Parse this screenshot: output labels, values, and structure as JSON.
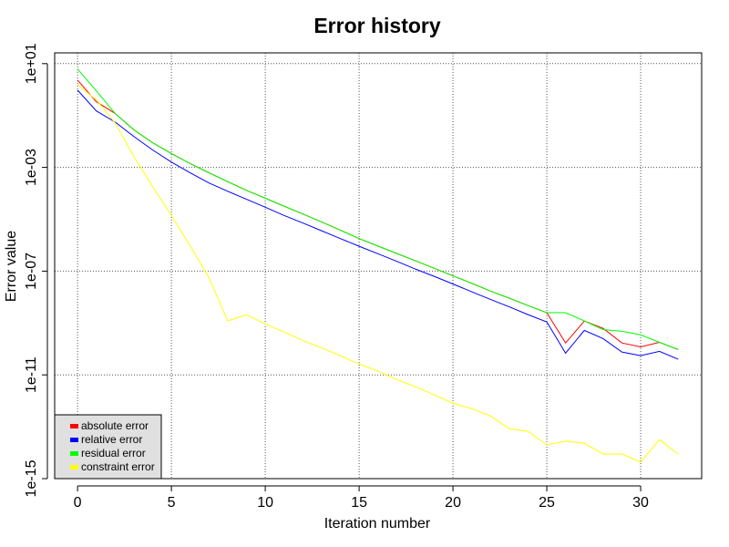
{
  "chart_data": {
    "type": "line",
    "title": "Error history",
    "x_label": "Iteration number",
    "y_label": "Error value",
    "log_y": true,
    "grid": true,
    "legend_position": "bottomleft",
    "x": [
      0,
      1,
      2,
      3,
      4,
      5,
      6,
      7,
      8,
      9,
      10,
      11,
      12,
      13,
      14,
      15,
      16,
      17,
      18,
      19,
      20,
      21,
      22,
      23,
      24,
      25,
      26,
      27,
      28,
      29,
      30,
      31,
      32
    ],
    "xlim": [
      -1.22,
      33.25
    ],
    "xticks": [
      0,
      5,
      10,
      15,
      20,
      25,
      30
    ],
    "ylim": [
      1e-15,
      26
    ],
    "yticks": [
      {
        "value": 10,
        "label": "1e+01"
      },
      {
        "value": 0.001,
        "label": "1e-03"
      },
      {
        "value": 1e-07,
        "label": "1e-07"
      },
      {
        "value": 1e-11,
        "label": "1e-11"
      },
      {
        "value": 1e-15,
        "label": "1e-15"
      }
    ],
    "series": [
      {
        "name": "absolute error",
        "color": "#ff0000",
        "values": [
          2.3,
          0.34,
          0.12,
          0.028,
          0.0089,
          0.0034,
          0.0014,
          0.00062,
          0.00028,
          0.00013,
          6.5e-05,
          3.2e-05,
          1.6e-05,
          7.9e-06,
          3.8e-06,
          1.8e-06,
          9.3e-07,
          4.8e-07,
          2.5e-07,
          1.3e-07,
          6.6e-08,
          3.4e-08,
          1.7e-08,
          9.1e-09,
          4.7e-09,
          2.5e-09,
          1.7e-10,
          1.2e-09,
          6.2e-10,
          1.7e-10,
          1.2e-10,
          1.8e-10,
          9.5e-11
        ]
      },
      {
        "name": "relative error",
        "color": "#0000ff",
        "values": [
          0.95,
          0.15,
          0.056,
          0.0155,
          0.0047,
          0.0016,
          0.00062,
          0.00025,
          0.00012,
          5.9e-05,
          2.9e-05,
          1.4e-05,
          7.2e-06,
          3.6e-06,
          1.8e-06,
          9.1e-07,
          4.7e-07,
          2.4e-07,
          1.2e-07,
          6.3e-08,
          3.2e-08,
          1.6e-08,
          8.1e-09,
          4.2e-09,
          2.1e-09,
          1.1e-09,
          6.9e-11,
          5.2e-10,
          2.5e-10,
          7.6e-11,
          5.5e-11,
          8.1e-11,
          4e-11
        ]
      },
      {
        "name": "residual error",
        "color": "#00ff00",
        "values": [
          6.2,
          0.89,
          0.12,
          0.028,
          0.0089,
          0.0034,
          0.0014,
          0.00062,
          0.00028,
          0.00013,
          6.5e-05,
          3.2e-05,
          1.6e-05,
          7.9e-06,
          3.8e-06,
          1.8e-06,
          9.3e-07,
          4.8e-07,
          2.5e-07,
          1.3e-07,
          6.6e-08,
          3.4e-08,
          1.7e-08,
          9.1e-09,
          4.7e-09,
          2.5e-09,
          2.5e-09,
          1.2e-09,
          5.6e-10,
          4.8e-10,
          3.5e-10,
          1.8e-10,
          9.5e-11
        ]
      },
      {
        "name": "constraint error",
        "color": "#ffff00",
        "values": [
          1.55,
          0.4,
          0.052,
          0.0026,
          0.00018,
          1.4e-05,
          9.5e-07,
          5.6e-08,
          1.2e-09,
          2.1e-09,
          9.1e-10,
          4.5e-10,
          2.1e-10,
          1.1e-10,
          5.5e-11,
          2.6e-11,
          1.4e-11,
          6.6e-12,
          3.5e-12,
          1.7e-12,
          8.1e-13,
          5e-13,
          2.6e-13,
          8.5e-14,
          6.6e-14,
          2e-14,
          2.8e-14,
          2.3e-14,
          8.9e-15,
          8.9e-15,
          4.3e-15,
          3.2e-14,
          8.9e-15
        ]
      }
    ]
  }
}
